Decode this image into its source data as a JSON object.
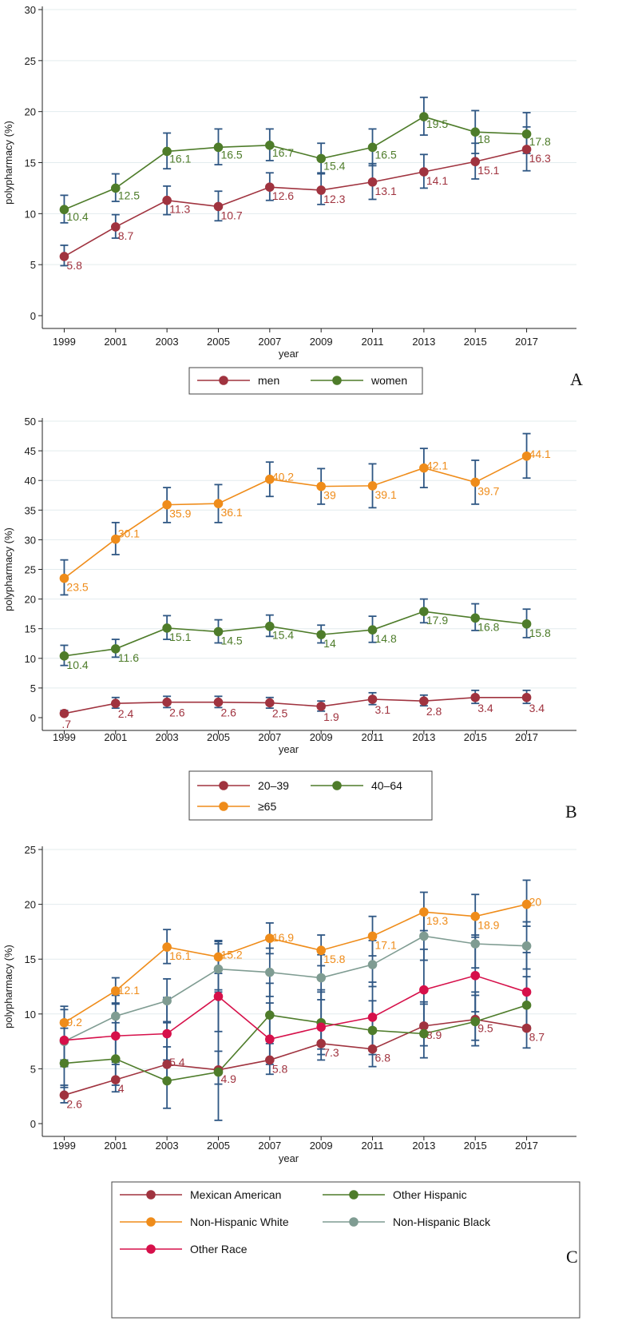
{
  "chart_data": [
    {
      "panel_letter": "A",
      "type": "line",
      "xlabel": "year",
      "ylabel": "polypharmacy (%)",
      "x": [
        1999,
        2001,
        2003,
        2005,
        2007,
        2009,
        2011,
        2013,
        2015,
        2017
      ],
      "x_tick_labels": [
        "1999",
        "2001",
        "2003",
        "2005",
        "2007",
        "2009",
        "2011",
        "2013",
        "2015",
        "2017"
      ],
      "y_ticks": [
        0,
        5,
        10,
        15,
        20,
        25,
        30
      ],
      "y_tick_labels": [
        "0",
        "5",
        "10",
        "15",
        "20",
        "25",
        "30"
      ],
      "ylim": [
        0,
        30
      ],
      "grid": true,
      "legend_placement": "bottom-center",
      "series": [
        {
          "name": "men",
          "color": "#a0333f",
          "values": [
            5.8,
            8.7,
            11.3,
            10.7,
            12.6,
            12.3,
            13.1,
            14.1,
            15.1,
            16.3
          ],
          "value_labels": [
            "5.8",
            "8.7",
            "11.3",
            "10.7",
            "12.6",
            "12.3",
            "13.1",
            "14.1",
            "15.1",
            "16.3"
          ],
          "ci_low": [
            4.9,
            7.6,
            9.9,
            9.3,
            11.3,
            10.9,
            11.4,
            12.5,
            13.4,
            14.2
          ],
          "ci_high": [
            6.9,
            9.9,
            12.7,
            12.2,
            14.0,
            13.9,
            14.9,
            15.8,
            16.9,
            18.5
          ]
        },
        {
          "name": "women",
          "color": "#4e7c2a",
          "values": [
            10.4,
            12.5,
            16.1,
            16.5,
            16.7,
            15.4,
            16.5,
            19.5,
            18.0,
            17.8
          ],
          "value_labels": [
            "10.4",
            "12.5",
            "16.1",
            "16.5",
            "16.7",
            "15.4",
            "16.5",
            "19.5",
            "18",
            "17.8"
          ],
          "ci_low": [
            9.1,
            11.2,
            14.4,
            14.8,
            15.2,
            14.0,
            14.7,
            17.7,
            15.9,
            15.9
          ],
          "ci_high": [
            11.8,
            13.9,
            17.9,
            18.3,
            18.3,
            16.9,
            18.3,
            21.4,
            20.1,
            19.9
          ]
        }
      ]
    },
    {
      "panel_letter": "B",
      "type": "line",
      "xlabel": "year",
      "ylabel": "polypharmacy (%)",
      "x": [
        1999,
        2001,
        2003,
        2005,
        2007,
        2009,
        2011,
        2013,
        2015,
        2017
      ],
      "x_tick_labels": [
        "1999",
        "2001",
        "2003",
        "2005",
        "2007",
        "2009",
        "2011",
        "2013",
        "2015",
        "2017"
      ],
      "y_ticks": [
        0,
        5,
        10,
        15,
        20,
        25,
        30,
        35,
        40,
        45,
        50
      ],
      "y_tick_labels": [
        "0",
        "5",
        "10",
        "15",
        "20",
        "25",
        "30",
        "35",
        "40",
        "45",
        "50"
      ],
      "ylim": [
        0,
        50
      ],
      "grid": true,
      "legend_placement": "bottom-center",
      "series": [
        {
          "name": "20–39",
          "color": "#a0333f",
          "values": [
            0.7,
            2.4,
            2.6,
            2.6,
            2.5,
            1.9,
            3.1,
            2.8,
            3.4,
            3.4
          ],
          "value_labels": [
            ".7",
            "2.4",
            "2.6",
            "2.6",
            "2.5",
            "1.9",
            "3.1",
            "2.8",
            "3.4",
            "3.4"
          ],
          "ci_low": [
            0.4,
            1.6,
            1.7,
            1.7,
            1.6,
            1.1,
            2.2,
            2.0,
            2.4,
            2.4
          ],
          "ci_high": [
            1.2,
            3.4,
            3.6,
            3.6,
            3.4,
            2.8,
            4.2,
            3.8,
            4.6,
            4.6
          ]
        },
        {
          "name": "40–64",
          "color": "#4e7c2a",
          "values": [
            10.4,
            11.6,
            15.1,
            14.5,
            15.4,
            14.0,
            14.8,
            17.9,
            16.8,
            15.8
          ],
          "value_labels": [
            "10.4",
            "11.6",
            "15.1",
            "14.5",
            "15.4",
            "14",
            "14.8",
            "17.9",
            "16.8",
            "15.8"
          ],
          "ci_low": [
            8.8,
            10.2,
            13.2,
            12.6,
            13.7,
            12.6,
            12.7,
            16.0,
            14.7,
            13.5
          ],
          "ci_high": [
            12.2,
            13.2,
            17.2,
            16.5,
            17.3,
            15.6,
            17.1,
            20.0,
            19.2,
            18.3
          ]
        },
        {
          "name": "≥65",
          "color": "#ef8c1a",
          "values": [
            23.5,
            30.1,
            35.9,
            36.1,
            40.2,
            39.0,
            39.1,
            42.1,
            39.7,
            44.1
          ],
          "value_labels": [
            "23.5",
            "30.1",
            "35.9",
            "36.1",
            "40.2",
            "39",
            "39.1",
            "42.1",
            "39.7",
            "44.1"
          ],
          "ci_low": [
            20.7,
            27.5,
            32.9,
            32.9,
            37.3,
            36.0,
            35.4,
            38.8,
            36.0,
            40.4
          ],
          "ci_high": [
            26.6,
            32.9,
            38.8,
            39.3,
            43.1,
            42.0,
            42.8,
            45.4,
            43.4,
            47.9
          ]
        }
      ]
    },
    {
      "panel_letter": "C",
      "type": "line",
      "xlabel": "year",
      "ylabel": "polypharmacy (%)",
      "x": [
        1999,
        2001,
        2003,
        2005,
        2007,
        2009,
        2011,
        2013,
        2015,
        2017
      ],
      "x_tick_labels": [
        "1999",
        "2001",
        "2003",
        "2005",
        "2007",
        "2009",
        "2011",
        "2013",
        "2015",
        "2017"
      ],
      "y_ticks": [
        0,
        5,
        10,
        15,
        20,
        25
      ],
      "y_tick_labels": [
        "0",
        "5",
        "10",
        "15",
        "20",
        "25"
      ],
      "ylim": [
        0,
        25
      ],
      "grid": true,
      "legend_placement": "bottom-center",
      "series": [
        {
          "name": "Mexican American",
          "color": "#a0333f",
          "values": [
            2.6,
            4.0,
            5.4,
            4.9,
            5.8,
            7.3,
            6.8,
            8.9,
            9.5,
            8.7
          ],
          "value_labels": [
            "2.6",
            "4",
            "5.4",
            "4.9",
            "5.8",
            "7.3",
            "6.8",
            "8.9",
            "9.5",
            "8.7"
          ],
          "ci_low": [
            1.9,
            2.9,
            4.0,
            3.6,
            4.5,
            5.8,
            5.2,
            7.1,
            7.6,
            6.9
          ],
          "ci_high": [
            3.5,
            5.4,
            7.0,
            6.6,
            7.3,
            9.1,
            8.7,
            11.1,
            11.7,
            10.9
          ]
        },
        {
          "name": "Other Hispanic",
          "color": "#4e7c2a",
          "values": [
            5.5,
            5.9,
            3.9,
            4.7,
            9.9,
            9.2,
            8.5,
            8.2,
            9.3,
            10.8
          ],
          "value_labels": [],
          "ci_low": [
            3.3,
            3.5,
            1.4,
            0.3,
            7.5,
            6.8,
            6.3,
            6.0,
            7.1,
            8.5
          ],
          "ci_high": [
            8.7,
            9.2,
            9.2,
            12.2,
            12.8,
            12.0,
            11.2,
            10.9,
            12.0,
            13.4
          ]
        },
        {
          "name": "Non-Hispanic White",
          "color": "#ef8c1a",
          "values": [
            9.2,
            12.1,
            16.1,
            15.2,
            16.9,
            15.8,
            17.1,
            19.3,
            18.9,
            20.0
          ],
          "value_labels": [
            "9.2",
            "12.1",
            "16.1",
            "15.2",
            "16.9",
            "15.8",
            "17.1",
            "19.3",
            "18.9",
            "20"
          ],
          "ci_low": [
            7.8,
            10.9,
            14.6,
            13.7,
            15.5,
            14.4,
            15.3,
            17.6,
            17.0,
            18.0
          ],
          "ci_high": [
            10.7,
            13.3,
            17.7,
            16.7,
            18.3,
            17.2,
            18.9,
            21.1,
            20.9,
            22.2
          ]
        },
        {
          "name": "Non-Hispanic Black",
          "color": "#7f9c92",
          "values": [
            7.5,
            9.8,
            11.2,
            14.1,
            13.8,
            13.3,
            14.5,
            17.1,
            16.4,
            16.2
          ],
          "value_labels": [],
          "ci_low": [
            5.8,
            8.1,
            9.3,
            12.0,
            11.6,
            11.3,
            12.5,
            14.9,
            14.2,
            14.1
          ],
          "ci_high": [
            9.4,
            11.7,
            13.2,
            16.4,
            16.0,
            15.4,
            16.7,
            19.4,
            18.8,
            18.4
          ]
        },
        {
          "name": "Other Race",
          "color": "#d6104a",
          "values": [
            7.6,
            8.0,
            8.2,
            11.6,
            7.7,
            8.8,
            9.7,
            12.2,
            13.5,
            12.0
          ],
          "value_labels": [],
          "ci_low": [
            5.2,
            5.6,
            5.8,
            8.4,
            5.4,
            6.3,
            7.0,
            9.1,
            10.2,
            8.9
          ],
          "ci_high": [
            10.4,
            11.0,
            11.5,
            16.6,
            11.0,
            12.2,
            12.9,
            15.9,
            17.2,
            15.6
          ]
        }
      ]
    }
  ]
}
